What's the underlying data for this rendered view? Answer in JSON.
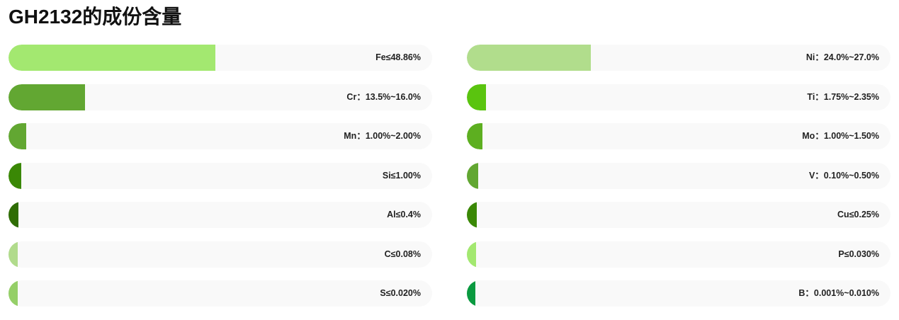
{
  "title": "GH2132的成份含量",
  "chart_data": {
    "type": "bar",
    "orientation": "horizontal",
    "layout": "two-column",
    "columns": [
      [
        {
          "label": "Fe≤48.86%",
          "value": 48.86,
          "color": "#a3e870"
        },
        {
          "label": "Cr：13.5%~16.0%",
          "value": 18.0,
          "color": "#62a732"
        },
        {
          "label": "Mn：1.00%~2.00%",
          "value": 4.2,
          "color": "#62a732"
        },
        {
          "label": "Si≤1.00%",
          "value": 3.0,
          "color": "#3a8805"
        },
        {
          "label": "Al≤0.4%",
          "value": 2.4,
          "color": "#2f6d04"
        },
        {
          "label": "C≤0.08%",
          "value": 2.2,
          "color": "#b1db8c"
        },
        {
          "label": "S≤0.020%",
          "value": 2.1,
          "color": "#95cf68"
        }
      ],
      [
        {
          "label": "Ni：24.0%~27.0%",
          "value": 29.2,
          "color": "#b1dd8c"
        },
        {
          "label": "Ti：1.75%~2.35%",
          "value": 4.5,
          "color": "#5ac40f"
        },
        {
          "label": "Mo：1.00%~1.50%",
          "value": 3.6,
          "color": "#5daf20"
        },
        {
          "label": "V：0.10%~0.50%",
          "value": 2.7,
          "color": "#62a732"
        },
        {
          "label": "Cu≤0.25%",
          "value": 2.3,
          "color": "#3a8805"
        },
        {
          "label": "P≤0.030%",
          "value": 2.1,
          "color": "#a3e870"
        },
        {
          "label": "B：0.001%~0.010%",
          "value": 2.0,
          "color": "#0a9a40"
        }
      ]
    ],
    "xlim": [
      0,
      100
    ],
    "grid": false,
    "legend": "none"
  }
}
